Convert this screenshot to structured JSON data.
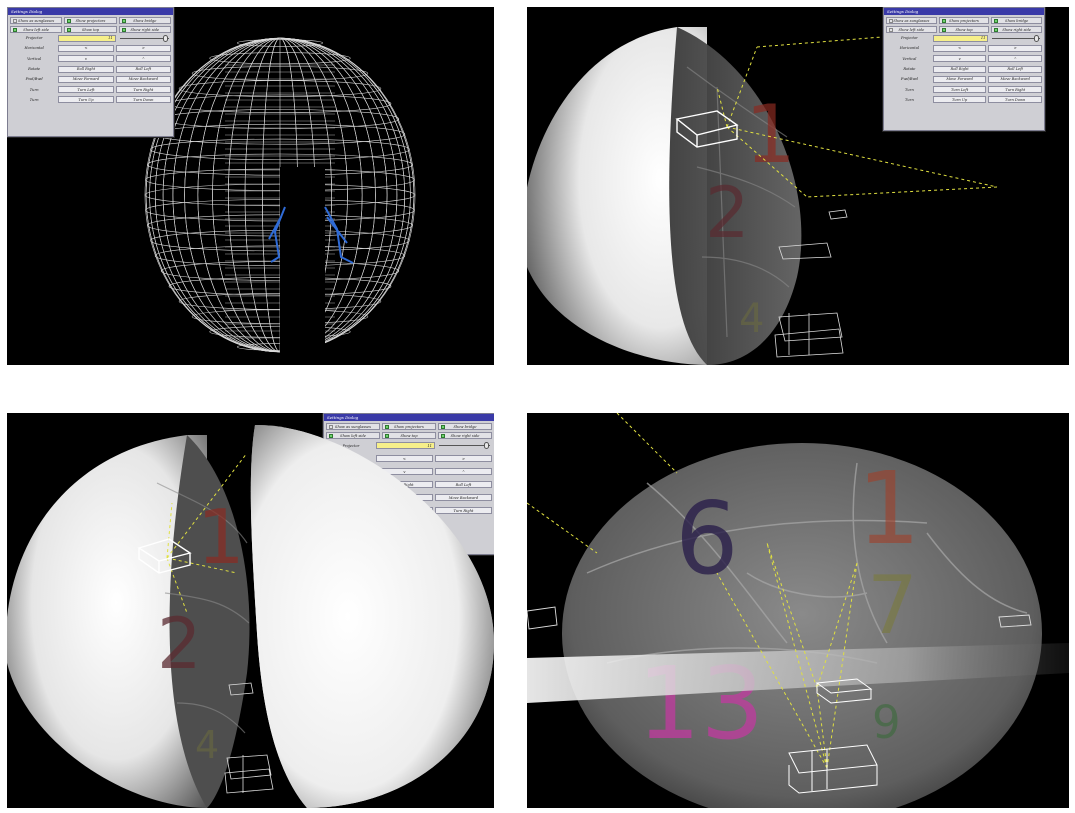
{
  "dialog": {
    "title": "Settings Dialog",
    "toggles": [
      {
        "label": "Show as sunglasses",
        "checked": false
      },
      {
        "label": "Show projectors",
        "checked": true
      },
      {
        "label": "Show bridge",
        "checked": false
      },
      {
        "label": "Show left side",
        "checked": true
      },
      {
        "label": "Show top",
        "checked": false
      },
      {
        "label": "Show right side",
        "checked": true
      }
    ],
    "projector_label": "Projector",
    "projector_value": "11",
    "slider_level": 0.95,
    "rows": [
      {
        "label": "Horizontal",
        "left": "<",
        "right": ">"
      },
      {
        "label": "Vertical",
        "left": "v",
        "right": "^"
      },
      {
        "label": "Rotate",
        "left": "Roll Right",
        "right": "Roll Left"
      },
      {
        "label": "Fwd/Bwd",
        "left": "Move Forward",
        "right": "Move Backward"
      },
      {
        "label": "Turn",
        "left": "Turn Left",
        "right": "Turn Right"
      },
      {
        "label": "Turn",
        "left": "Turn Up",
        "right": "Turn Down"
      }
    ]
  },
  "sphere_numbers": {
    "panel2": [
      "1",
      "2",
      "4"
    ],
    "panel3": [
      "1",
      "2",
      "4"
    ],
    "panel4": [
      "6",
      "1",
      "7",
      "13",
      "9"
    ]
  }
}
